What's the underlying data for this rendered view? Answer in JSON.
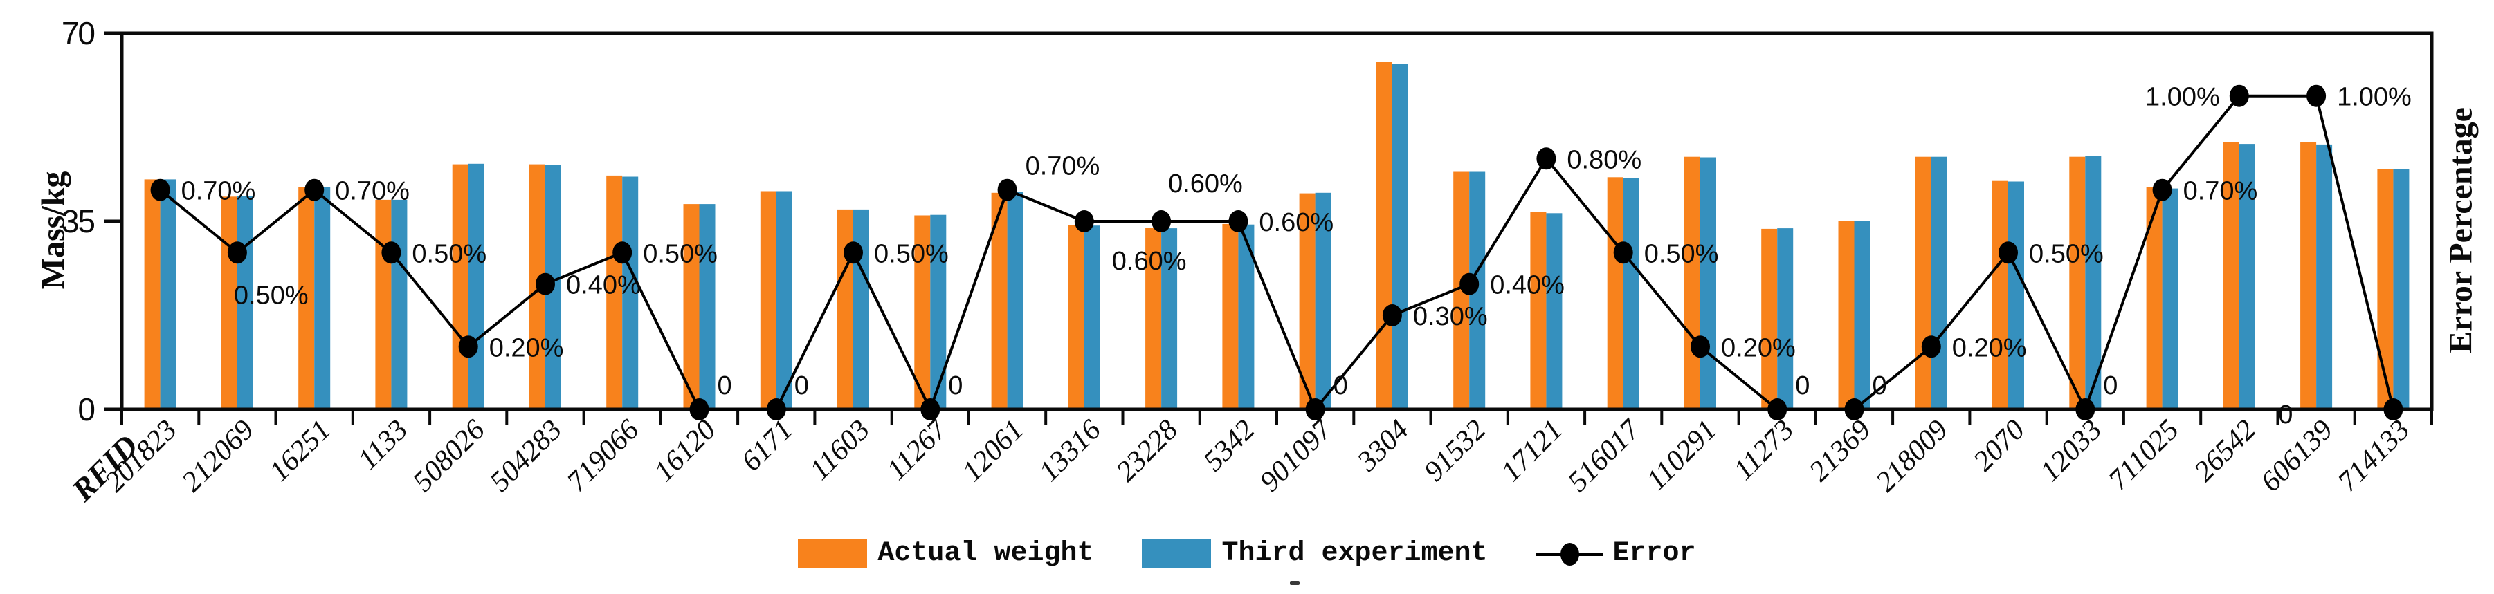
{
  "page": {
    "background": "#ffffff"
  },
  "y_axis": {
    "title": "Mass/kg",
    "tick_labels": [
      "0",
      "35",
      "70"
    ],
    "tick_values": [
      0,
      35,
      70
    ],
    "min": 0,
    "max": 70
  },
  "x_axis": {
    "title": "RFID"
  },
  "secondary_y_axis": {
    "title": "Error Percentage"
  },
  "legend": {
    "actual": "Actual weight",
    "experiment": "Third experiment",
    "error": "Error"
  },
  "colors": {
    "actual": "#F8821C",
    "experiment": "#3590BE",
    "line": "#000000",
    "axis": "#0a0a0a"
  },
  "chart_data": {
    "type": "bar+line",
    "title": "",
    "xlabel": "RFID",
    "ylabel": "Mass/kg",
    "y2label": "Error Percentage",
    "ylim": [
      0,
      70
    ],
    "y2lim": [
      0,
      1.2
    ],
    "grid": false,
    "legend_position": "bottom",
    "categories": [
      "201823",
      "212069",
      "16251",
      "1133",
      "508026",
      "504283",
      "719066",
      "16120",
      "6171",
      "11603",
      "11267",
      "12061",
      "13316",
      "23228",
      "5342",
      "901097",
      "3304",
      "91532",
      "17121",
      "516017",
      "110291",
      "11273",
      "21369",
      "218009",
      "2070",
      "12033",
      "711025",
      "26542",
      "606139",
      "714133"
    ],
    "series": [
      {
        "name": "Actual weight",
        "type": "bar",
        "axis": "left",
        "unit": "kg",
        "values": [
          42.8,
          39.6,
          41.3,
          39.0,
          45.6,
          45.6,
          43.5,
          38.2,
          40.6,
          37.2,
          36.1,
          40.3,
          34.3,
          33.8,
          34.5,
          40.2,
          64.7,
          44.2,
          36.8,
          43.2,
          47.0,
          33.6,
          35.0,
          47.0,
          42.5,
          47.0,
          41.3,
          49.8,
          49.8,
          44.7
        ]
      },
      {
        "name": "Third experiment",
        "type": "bar",
        "axis": "left",
        "unit": "kg",
        "values": [
          42.8,
          39.7,
          41.3,
          39.0,
          45.7,
          45.5,
          43.3,
          38.2,
          40.6,
          37.2,
          36.2,
          40.5,
          34.2,
          33.7,
          34.4,
          40.3,
          64.3,
          44.2,
          36.5,
          43.0,
          46.9,
          33.7,
          35.1,
          47.0,
          42.4,
          47.1,
          41.1,
          49.4,
          49.3,
          44.7
        ]
      },
      {
        "name": "Error",
        "type": "line",
        "axis": "right",
        "unit": "%",
        "values": [
          0.7,
          0.5,
          0.7,
          0.5,
          0.2,
          0.4,
          0.5,
          0,
          0,
          0.5,
          0,
          0.7,
          0.6,
          0.6,
          0.6,
          0,
          0.3,
          0.4,
          0.8,
          0.5,
          0.2,
          0,
          0,
          0.2,
          0.5,
          0,
          0.7,
          1.0,
          1.0,
          0
        ],
        "point_labels": [
          "0.70%",
          "0.50%",
          "0.70%",
          "0.50%",
          "0.20%",
          "0.40%",
          "0.50%",
          "0",
          "0",
          "0.50%",
          "0",
          "0.70%",
          "0.60%",
          "0.60%",
          "0.60%",
          "0",
          "0.30%",
          "0.40%",
          "0.80%",
          "0.50%",
          "0.20%",
          "0",
          "0",
          "0.20%",
          "0.50%",
          "0",
          "0.70%",
          "1.00%",
          "1.00%",
          "0"
        ],
        "label_placement": [
          "r",
          "b",
          "r",
          "r",
          "r",
          "r",
          "r",
          "ar",
          "ar",
          "r",
          "ar",
          "ar",
          "br",
          "a",
          "r",
          "ar",
          "r",
          "r",
          "r",
          "r",
          "r",
          "ar",
          "ar",
          "r",
          "r",
          "ar",
          "r",
          "l",
          "r",
          "ll"
        ]
      }
    ]
  }
}
